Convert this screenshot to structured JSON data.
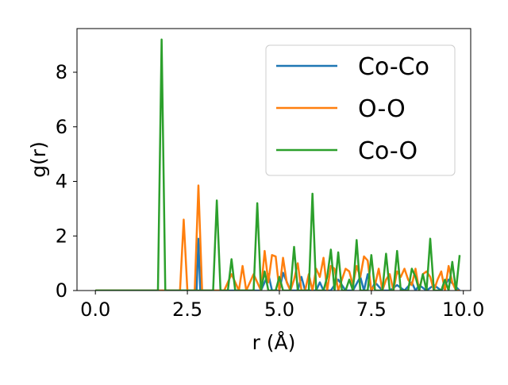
{
  "chart_data": {
    "type": "line",
    "title": "",
    "xlabel": "r (Å)",
    "ylabel": "g(r)",
    "xlim": [
      -0.5,
      10.2
    ],
    "ylim": [
      0,
      9.6
    ],
    "xticks": [
      0.0,
      2.5,
      5.0,
      7.5,
      10.0
    ],
    "xtick_labels": [
      "0.0",
      "2.5",
      "5.0",
      "7.5",
      "10.0"
    ],
    "yticks": [
      0,
      2,
      4,
      6,
      8
    ],
    "ytick_labels": [
      "0",
      "2",
      "4",
      "6",
      "8"
    ],
    "grid": false,
    "legend_position": "upper right",
    "series": [
      {
        "name": "Co-Co",
        "color": "#1f77b4",
        "x": [
          0.0,
          2.75,
          2.8,
          2.85,
          2.95,
          4.5,
          4.7,
          4.8,
          5.0,
          5.1,
          5.3,
          5.5,
          5.6,
          5.7,
          5.8,
          6.0,
          6.1,
          6.2,
          6.4,
          6.6,
          6.8,
          7.0,
          7.2,
          7.3,
          7.4,
          7.5,
          7.6,
          7.8,
          8.0,
          8.2,
          8.4,
          8.6,
          8.7,
          8.8,
          9.0,
          9.2,
          9.4,
          9.6,
          9.9
        ],
        "y": [
          0.0,
          0.0,
          1.9,
          0.0,
          0.0,
          0.0,
          0.6,
          0.0,
          0.0,
          0.65,
          0.0,
          0.0,
          0.5,
          0.0,
          0.0,
          0.0,
          0.3,
          0.0,
          0.0,
          0.4,
          0.0,
          0.0,
          0.5,
          0.0,
          0.6,
          0.0,
          0.3,
          0.0,
          0.0,
          0.2,
          0.0,
          0.3,
          0.0,
          0.2,
          0.0,
          0.2,
          0.0,
          0.4,
          0.0
        ]
      },
      {
        "name": "O-O",
        "color": "#ff7f0e",
        "x": [
          0.0,
          2.3,
          2.4,
          2.5,
          2.7,
          2.8,
          2.9,
          3.1,
          3.3,
          3.5,
          3.7,
          3.8,
          3.9,
          4.0,
          4.1,
          4.3,
          4.5,
          4.6,
          4.7,
          4.8,
          4.9,
          5.0,
          5.1,
          5.2,
          5.3,
          5.4,
          5.5,
          5.6,
          5.7,
          5.8,
          5.9,
          6.0,
          6.1,
          6.2,
          6.3,
          6.4,
          6.5,
          6.6,
          6.7,
          6.8,
          6.9,
          7.0,
          7.1,
          7.2,
          7.3,
          7.4,
          7.5,
          7.6,
          7.7,
          7.8,
          7.9,
          8.0,
          8.1,
          8.2,
          8.3,
          8.4,
          8.5,
          8.6,
          8.7,
          8.8,
          8.9,
          9.0,
          9.1,
          9.2,
          9.3,
          9.4,
          9.5,
          9.6,
          9.7,
          9.8,
          9.9
        ],
        "y": [
          0.0,
          0.0,
          2.6,
          0.0,
          0.0,
          3.85,
          0.0,
          0.0,
          0.0,
          0.0,
          0.6,
          0.3,
          0.0,
          0.9,
          0.0,
          0.6,
          0.0,
          1.45,
          0.3,
          1.3,
          1.25,
          0.0,
          1.2,
          0.3,
          0.0,
          0.4,
          1.0,
          0.0,
          0.0,
          0.6,
          0.0,
          0.8,
          0.5,
          1.2,
          0.0,
          0.9,
          0.8,
          0.0,
          0.4,
          0.8,
          0.7,
          0.2,
          0.9,
          0.5,
          1.25,
          1.1,
          0.0,
          0.2,
          0.8,
          0.0,
          0.4,
          0.6,
          0.0,
          0.7,
          0.5,
          0.8,
          0.4,
          0.2,
          0.8,
          0.0,
          0.6,
          0.7,
          0.5,
          0.0,
          0.4,
          0.7,
          0.0,
          0.9,
          0.3,
          0.0,
          0.0
        ]
      },
      {
        "name": "Co-O",
        "color": "#2ca02c",
        "x": [
          0.0,
          1.7,
          1.8,
          1.9,
          3.2,
          3.3,
          3.4,
          3.6,
          3.7,
          3.8,
          4.3,
          4.4,
          4.5,
          4.6,
          4.7,
          4.9,
          5.0,
          5.1,
          5.3,
          5.4,
          5.5,
          5.6,
          5.8,
          5.9,
          6.0,
          6.2,
          6.3,
          6.4,
          6.5,
          6.6,
          6.7,
          6.8,
          6.9,
          7.0,
          7.1,
          7.2,
          7.4,
          7.5,
          7.6,
          7.8,
          7.9,
          8.0,
          8.1,
          8.2,
          8.3,
          8.5,
          8.6,
          8.7,
          8.8,
          8.9,
          9.0,
          9.1,
          9.2,
          9.4,
          9.5,
          9.6,
          9.7,
          9.8,
          9.9
        ],
        "y": [
          0.0,
          0.0,
          9.2,
          0.0,
          0.0,
          3.3,
          0.0,
          0.0,
          1.15,
          0.0,
          0.0,
          3.2,
          0.0,
          0.7,
          0.0,
          0.0,
          0.5,
          0.0,
          0.0,
          1.6,
          0.0,
          0.0,
          0.0,
          3.55,
          0.0,
          0.0,
          0.5,
          1.5,
          0.0,
          1.4,
          0.0,
          0.0,
          0.4,
          0.0,
          1.85,
          0.0,
          0.0,
          1.3,
          0.0,
          0.0,
          1.35,
          0.0,
          0.0,
          1.45,
          0.0,
          0.0,
          0.8,
          0.5,
          0.0,
          0.6,
          0.0,
          1.9,
          0.0,
          0.0,
          0.4,
          0.0,
          1.05,
          0.0,
          1.3
        ]
      }
    ]
  }
}
